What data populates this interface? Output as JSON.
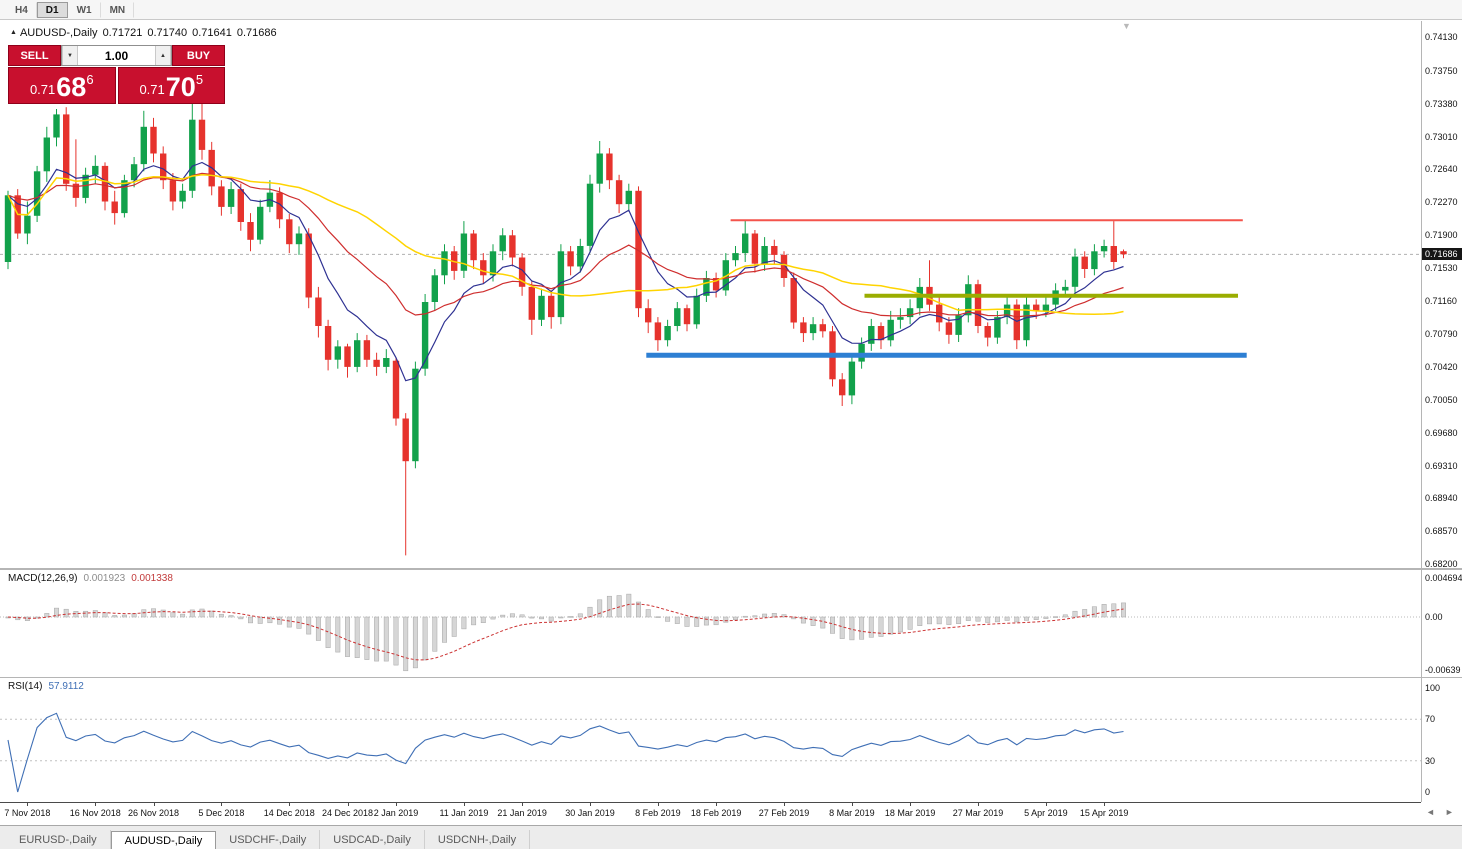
{
  "toolbar": {
    "timeframes": [
      {
        "label": "H4",
        "active": false
      },
      {
        "label": "D1",
        "active": true
      },
      {
        "label": "W1",
        "active": false
      },
      {
        "label": "MN",
        "active": false
      }
    ]
  },
  "icons": {
    "collapse": "▲",
    "spinner_up": "▲",
    "spinner_down": "▼",
    "shift_marker": "▼",
    "scroll_left": "◄",
    "scroll_right": "►"
  },
  "header": {
    "symbol_title": "AUDUSD-,Daily",
    "open": "0.71721",
    "high": "0.71740",
    "low": "0.71641",
    "close": "0.71686"
  },
  "trade_panel": {
    "sell_label": "SELL",
    "buy_label": "BUY",
    "volume": "1.00",
    "sell_price": {
      "prefix": "0.71",
      "big": "68",
      "sup": "6"
    },
    "buy_price": {
      "prefix": "0.71",
      "big": "70",
      "sup": "5"
    }
  },
  "price_axis": {
    "labels": [
      "0.74130",
      "0.73750",
      "0.73380",
      "0.73010",
      "0.72640",
      "0.72270",
      "0.71900",
      "0.71530",
      "0.71160",
      "0.70790",
      "0.70420",
      "0.70050",
      "0.69680",
      "0.69310",
      "0.68940",
      "0.68570",
      "0.68200"
    ],
    "current_price": "0.71686"
  },
  "date_axis": [
    {
      "index": 2,
      "label": "7 Nov 2018"
    },
    {
      "index": 9,
      "label": "16 Nov 2018"
    },
    {
      "index": 15,
      "label": "26 Nov 2018"
    },
    {
      "index": 22,
      "label": "5 Dec 2018"
    },
    {
      "index": 29,
      "label": "14 Dec 2018"
    },
    {
      "index": 35,
      "label": "24 Dec 2018"
    },
    {
      "index": 40,
      "label": "2 Jan 2019"
    },
    {
      "index": 47,
      "label": "11 Jan 2019"
    },
    {
      "index": 53,
      "label": "21 Jan 2019"
    },
    {
      "index": 60,
      "label": "30 Jan 2019"
    },
    {
      "index": 67,
      "label": "8 Feb 2019"
    },
    {
      "index": 73,
      "label": "18 Feb 2019"
    },
    {
      "index": 80,
      "label": "27 Feb 2019"
    },
    {
      "index": 87,
      "label": "8 Mar 2019"
    },
    {
      "index": 93,
      "label": "18 Mar 2019"
    },
    {
      "index": 100,
      "label": "27 Mar 2019"
    },
    {
      "index": 107,
      "label": "5 Apr 2019"
    },
    {
      "index": 113,
      "label": "15 Apr 2019"
    }
  ],
  "tabs": [
    {
      "label": "EURUSD-,Daily",
      "active": false
    },
    {
      "label": "AUDUSD-,Daily",
      "active": true
    },
    {
      "label": "USDCHF-,Daily",
      "active": false
    },
    {
      "label": "USDCAD-,Daily",
      "active": false
    },
    {
      "label": "USDCNH-,Daily",
      "active": false
    }
  ],
  "colors": {
    "bull": "#12a14b",
    "bear": "#e6332d",
    "current_line": "#b0b0b0",
    "badge_bg": "#151515",
    "macd_hist": "#d6d6d6",
    "macd_signal": "#cc3333",
    "rsi": "#3f6fb5",
    "trade_red": "#c8102e"
  },
  "chart_data": {
    "type": "candlestick",
    "title": "AUDUSD-,Daily",
    "symbol": "AUDUSD",
    "timeframe": "Daily",
    "ylim": [
      0.682,
      0.7413
    ],
    "price_step": 0.0037,
    "current": {
      "open": 0.71721,
      "high": 0.7174,
      "low": 0.71641,
      "close": 0.71686
    },
    "candles": [
      [
        0.716,
        0.724,
        0.7152,
        0.7235
      ],
      [
        0.7235,
        0.7242,
        0.7186,
        0.7192
      ],
      [
        0.7192,
        0.7228,
        0.718,
        0.7212
      ],
      [
        0.7212,
        0.7268,
        0.7205,
        0.7262
      ],
      [
        0.7262,
        0.7312,
        0.725,
        0.73
      ],
      [
        0.73,
        0.7332,
        0.729,
        0.7326
      ],
      [
        0.7326,
        0.7334,
        0.724,
        0.7248
      ],
      [
        0.7248,
        0.7298,
        0.7222,
        0.7232
      ],
      [
        0.7232,
        0.7266,
        0.7226,
        0.7258
      ],
      [
        0.7258,
        0.728,
        0.7248,
        0.7268
      ],
      [
        0.7268,
        0.7272,
        0.7218,
        0.7228
      ],
      [
        0.7228,
        0.724,
        0.7202,
        0.7215
      ],
      [
        0.7215,
        0.7258,
        0.721,
        0.7252
      ],
      [
        0.7252,
        0.7278,
        0.7244,
        0.727
      ],
      [
        0.727,
        0.733,
        0.7262,
        0.7312
      ],
      [
        0.7312,
        0.7322,
        0.7272,
        0.7282
      ],
      [
        0.7282,
        0.729,
        0.7242,
        0.7252
      ],
      [
        0.7252,
        0.726,
        0.7218,
        0.7228
      ],
      [
        0.7228,
        0.7248,
        0.722,
        0.724
      ],
      [
        0.724,
        0.7338,
        0.7232,
        0.732
      ],
      [
        0.732,
        0.7344,
        0.7275,
        0.7286
      ],
      [
        0.7286,
        0.7295,
        0.7235,
        0.7245
      ],
      [
        0.7245,
        0.7252,
        0.7212,
        0.7222
      ],
      [
        0.7222,
        0.725,
        0.7214,
        0.7242
      ],
      [
        0.7242,
        0.7248,
        0.7195,
        0.7205
      ],
      [
        0.7205,
        0.7215,
        0.7172,
        0.7185
      ],
      [
        0.7185,
        0.723,
        0.718,
        0.7222
      ],
      [
        0.7222,
        0.7252,
        0.7216,
        0.7238
      ],
      [
        0.7238,
        0.7244,
        0.7198,
        0.7208
      ],
      [
        0.7208,
        0.7214,
        0.717,
        0.718
      ],
      [
        0.718,
        0.72,
        0.7168,
        0.7192
      ],
      [
        0.7192,
        0.7198,
        0.7108,
        0.712
      ],
      [
        0.712,
        0.7132,
        0.7075,
        0.7088
      ],
      [
        0.7088,
        0.7095,
        0.7038,
        0.705
      ],
      [
        0.705,
        0.7072,
        0.704,
        0.7065
      ],
      [
        0.7065,
        0.7068,
        0.703,
        0.7042
      ],
      [
        0.7042,
        0.708,
        0.7036,
        0.7072
      ],
      [
        0.7072,
        0.7078,
        0.7042,
        0.705
      ],
      [
        0.705,
        0.7058,
        0.7032,
        0.7042
      ],
      [
        0.7042,
        0.7062,
        0.7035,
        0.7052
      ],
      [
        0.7049,
        0.7052,
        0.6976,
        0.6984
      ],
      [
        0.6984,
        0.699,
        0.683,
        0.6936
      ],
      [
        0.6936,
        0.7048,
        0.6928,
        0.704
      ],
      [
        0.704,
        0.7124,
        0.7032,
        0.7115
      ],
      [
        0.7115,
        0.7152,
        0.7105,
        0.7145
      ],
      [
        0.7145,
        0.718,
        0.7135,
        0.7172
      ],
      [
        0.7172,
        0.7178,
        0.714,
        0.715
      ],
      [
        0.715,
        0.7206,
        0.7142,
        0.7192
      ],
      [
        0.7192,
        0.7196,
        0.7152,
        0.7162
      ],
      [
        0.7162,
        0.717,
        0.7136,
        0.7145
      ],
      [
        0.7145,
        0.718,
        0.7138,
        0.7172
      ],
      [
        0.7172,
        0.7198,
        0.7162,
        0.719
      ],
      [
        0.719,
        0.7196,
        0.7155,
        0.7165
      ],
      [
        0.7165,
        0.717,
        0.7122,
        0.7132
      ],
      [
        0.7132,
        0.7138,
        0.7078,
        0.7095
      ],
      [
        0.7095,
        0.713,
        0.7088,
        0.7122
      ],
      [
        0.7122,
        0.7128,
        0.7085,
        0.7098
      ],
      [
        0.7098,
        0.718,
        0.709,
        0.7172
      ],
      [
        0.7172,
        0.7178,
        0.7145,
        0.7155
      ],
      [
        0.7155,
        0.7186,
        0.7148,
        0.7178
      ],
      [
        0.7178,
        0.7258,
        0.717,
        0.7248
      ],
      [
        0.7248,
        0.7296,
        0.7238,
        0.7282
      ],
      [
        0.7282,
        0.7288,
        0.7242,
        0.7252
      ],
      [
        0.7252,
        0.7258,
        0.7215,
        0.7225
      ],
      [
        0.7225,
        0.7248,
        0.7218,
        0.724
      ],
      [
        0.724,
        0.7245,
        0.7098,
        0.7108
      ],
      [
        0.7108,
        0.7118,
        0.708,
        0.7092
      ],
      [
        0.7092,
        0.7098,
        0.706,
        0.7072
      ],
      [
        0.7072,
        0.7095,
        0.7065,
        0.7088
      ],
      [
        0.7088,
        0.7115,
        0.7082,
        0.7108
      ],
      [
        0.7108,
        0.7112,
        0.7082,
        0.709
      ],
      [
        0.709,
        0.713,
        0.7085,
        0.7122
      ],
      [
        0.7122,
        0.715,
        0.7115,
        0.7142
      ],
      [
        0.7142,
        0.7148,
        0.712,
        0.7128
      ],
      [
        0.7128,
        0.717,
        0.7122,
        0.7162
      ],
      [
        0.7162,
        0.7178,
        0.7155,
        0.717
      ],
      [
        0.717,
        0.7207,
        0.716,
        0.7192
      ],
      [
        0.7192,
        0.7196,
        0.7148,
        0.7158
      ],
      [
        0.7158,
        0.7188,
        0.715,
        0.7178
      ],
      [
        0.7178,
        0.7185,
        0.7158,
        0.7168
      ],
      [
        0.7168,
        0.7172,
        0.7132,
        0.7142
      ],
      [
        0.7142,
        0.7148,
        0.7085,
        0.7092
      ],
      [
        0.7092,
        0.7098,
        0.707,
        0.708
      ],
      [
        0.708,
        0.7098,
        0.7072,
        0.709
      ],
      [
        0.709,
        0.7096,
        0.7075,
        0.7082
      ],
      [
        0.7082,
        0.7088,
        0.702,
        0.7028
      ],
      [
        0.7028,
        0.7035,
        0.6998,
        0.701
      ],
      [
        0.701,
        0.7055,
        0.7,
        0.7048
      ],
      [
        0.7048,
        0.7075,
        0.704,
        0.7068
      ],
      [
        0.7068,
        0.7096,
        0.706,
        0.7088
      ],
      [
        0.7088,
        0.7092,
        0.7062,
        0.7072
      ],
      [
        0.7072,
        0.7105,
        0.7065,
        0.7095
      ],
      [
        0.7095,
        0.7108,
        0.7085,
        0.7098
      ],
      [
        0.7098,
        0.7118,
        0.709,
        0.7108
      ],
      [
        0.7108,
        0.7142,
        0.71,
        0.7132
      ],
      [
        0.7132,
        0.7162,
        0.7105,
        0.7112
      ],
      [
        0.7112,
        0.712,
        0.7082,
        0.7092
      ],
      [
        0.7092,
        0.7098,
        0.7068,
        0.7078
      ],
      [
        0.7078,
        0.7108,
        0.707,
        0.71
      ],
      [
        0.71,
        0.7145,
        0.7092,
        0.7135
      ],
      [
        0.7135,
        0.714,
        0.708,
        0.7088
      ],
      [
        0.7088,
        0.7092,
        0.7065,
        0.7075
      ],
      [
        0.7075,
        0.7105,
        0.7068,
        0.7098
      ],
      [
        0.7098,
        0.7122,
        0.709,
        0.7112
      ],
      [
        0.7112,
        0.7118,
        0.7062,
        0.7072
      ],
      [
        0.7072,
        0.7122,
        0.7065,
        0.7112
      ],
      [
        0.7112,
        0.7118,
        0.7096,
        0.7105
      ],
      [
        0.7105,
        0.712,
        0.7098,
        0.7112
      ],
      [
        0.7112,
        0.7136,
        0.7105,
        0.7128
      ],
      [
        0.7128,
        0.714,
        0.712,
        0.7132
      ],
      [
        0.7132,
        0.7175,
        0.7125,
        0.7166
      ],
      [
        0.7166,
        0.7172,
        0.7142,
        0.7152
      ],
      [
        0.7152,
        0.718,
        0.7145,
        0.7172
      ],
      [
        0.7172,
        0.7185,
        0.7165,
        0.7178
      ],
      [
        0.7178,
        0.7206,
        0.7152,
        0.716
      ],
      [
        0.71721,
        0.7174,
        0.71641,
        0.71686
      ]
    ],
    "moving_averages": [
      {
        "name": "ma-fast-blue",
        "type": "ema",
        "period": 8,
        "color": "#2e3192",
        "width": 1.2
      },
      {
        "name": "ma-mid-red",
        "type": "ema",
        "period": 22,
        "color": "#cf2e2e",
        "width": 1.2
      },
      {
        "name": "ma-slow-yellow",
        "type": "sma",
        "period": 34,
        "color": "#ffd400",
        "width": 1.5
      }
    ],
    "horizontal_lines": [
      {
        "name": "resistance",
        "price": 0.7207,
        "from_index": 74.5,
        "to_index": 127.3,
        "color": "#f4544c",
        "width": 2
      },
      {
        "name": "minor-resistance",
        "price": 0.7122,
        "from_index": 88.3,
        "to_index": 126.8,
        "color": "#9aad00",
        "width": 4
      },
      {
        "name": "support",
        "price": 0.7055,
        "from_index": 65.8,
        "to_index": 127.7,
        "color": "#2d7fd3",
        "width": 5
      }
    ],
    "macd": {
      "label": "MACD(12,26,9)",
      "fast": 12,
      "slow": 26,
      "signal": 9,
      "value": "0.001923",
      "signal_value": "0.001338",
      "axis": [
        "0.004694",
        "0.00",
        "-0.00639"
      ],
      "ylim": [
        -0.00639,
        0.004694
      ]
    },
    "rsi": {
      "label": "RSI(14)",
      "period": 14,
      "value": "57.9112",
      "axis": [
        "100",
        "70",
        "30",
        "0"
      ],
      "levels": [
        70,
        30
      ]
    }
  }
}
